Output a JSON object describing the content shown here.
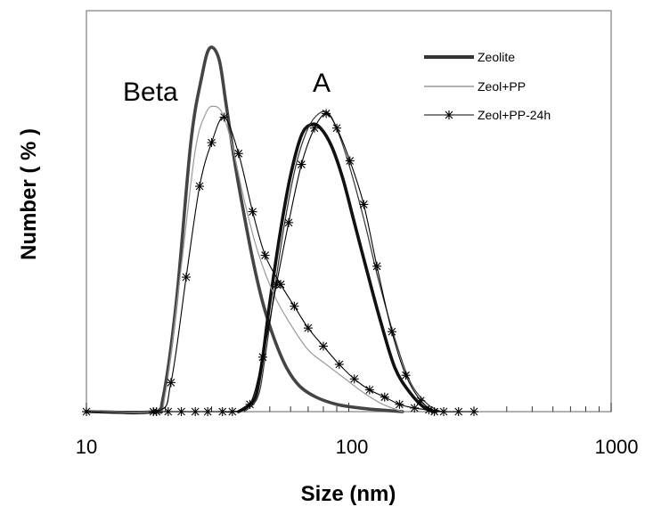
{
  "chart_data": {
    "type": "line",
    "xscale": "log",
    "xlim": [
      10,
      1000
    ],
    "ylim": [
      0,
      100
    ],
    "xlabel": "Size (nm)",
    "ylabel": "Number ( % )",
    "xticklabels": [
      "10",
      "100",
      "1000"
    ],
    "legend_position": "top-right",
    "grid": false,
    "annotations": [
      "Beta",
      "A"
    ],
    "series": [
      {
        "name": "Zeolite",
        "style": "thick",
        "color": "#444444",
        "sample": "Beta",
        "x": [
          10,
          18,
          19.5,
          22,
          25,
          27.5,
          29.5,
          32,
          34,
          36.5,
          39,
          43,
          47,
          52,
          58,
          65,
          75,
          90,
          110,
          130,
          160
        ],
        "y": [
          0,
          0,
          3,
          30,
          74,
          92,
          100,
          97,
          85,
          70,
          58,
          42,
          30,
          20,
          12,
          7,
          4,
          2,
          1,
          0.5,
          0
        ]
      },
      {
        "name": "Zeolite",
        "style": "thick",
        "color": "#111111",
        "sample": "A",
        "x": [
          38,
          42,
          44.5,
          47,
          50,
          55,
          60,
          66,
          72,
          78,
          86,
          95,
          105,
          118,
          132,
          150,
          172,
          195,
          215
        ],
        "y": [
          0,
          2,
          5,
          15,
          30,
          50,
          65,
          76,
          79,
          78,
          73,
          64,
          52,
          38,
          25,
          12,
          5,
          1,
          0
        ]
      },
      {
        "name": "Zeol+PP",
        "style": "thin",
        "color": "#999999",
        "sample": "Beta",
        "x": [
          10,
          18,
          20,
          23,
          26,
          28.5,
          30.5,
          33,
          36,
          40,
          45,
          52,
          60,
          70,
          82,
          97,
          115,
          135,
          160
        ],
        "y": [
          0,
          0,
          5,
          40,
          72,
          82,
          84,
          82,
          73,
          58,
          44,
          32,
          24,
          17,
          13,
          9,
          5,
          2,
          0
        ]
      },
      {
        "name": "Zeol+PP",
        "style": "thin",
        "color": "#333333",
        "sample": "A",
        "x": [
          40,
          45,
          48,
          52,
          57,
          63,
          70,
          77,
          84,
          92,
          102,
          115,
          130,
          150,
          172,
          200,
          225
        ],
        "y": [
          0,
          4,
          15,
          33,
          52,
          68,
          78,
          82,
          82,
          76,
          66,
          52,
          36,
          20,
          8,
          2,
          0
        ]
      },
      {
        "name": "Zeol+PP-24h",
        "style": "star-markers",
        "color": "#000000",
        "sample": "Beta",
        "x": [
          10,
          18.5,
          21,
          24,
          27,
          30,
          33.5,
          38,
          43,
          48,
          55,
          62,
          70,
          80,
          92,
          105,
          120,
          137,
          156,
          178,
          202,
          230,
          262,
          300
        ],
        "y": [
          0,
          0,
          8,
          37,
          62,
          74,
          81,
          71,
          55,
          43,
          35,
          29,
          23,
          18,
          13,
          9,
          6,
          4,
          2,
          1,
          0.5,
          0,
          0,
          0
        ]
      },
      {
        "name": "Zeol+PP-24h",
        "style": "star-markers",
        "color": "#000000",
        "sample": "A",
        "x": [
          18,
          20.5,
          23,
          26,
          29,
          33,
          36,
          42,
          47,
          53,
          59,
          66,
          74,
          82,
          90,
          101,
          114,
          128,
          146,
          165,
          188,
          212
        ],
        "y": [
          0,
          0,
          0,
          0,
          0,
          0,
          0,
          2,
          15,
          35,
          52,
          68,
          78,
          82,
          78,
          69,
          57,
          40,
          22,
          10,
          3,
          0
        ]
      }
    ]
  }
}
